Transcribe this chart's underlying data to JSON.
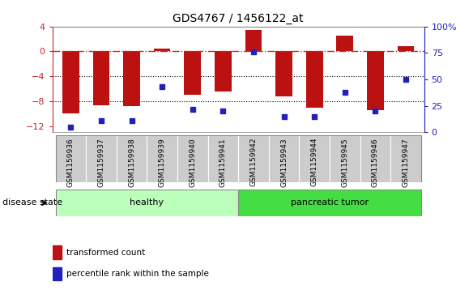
{
  "title": "GDS4767 / 1456122_at",
  "samples": [
    "GSM1159936",
    "GSM1159937",
    "GSM1159938",
    "GSM1159939",
    "GSM1159940",
    "GSM1159941",
    "GSM1159942",
    "GSM1159943",
    "GSM1159944",
    "GSM1159945",
    "GSM1159946",
    "GSM1159947"
  ],
  "transformed_count": [
    -10.0,
    -8.6,
    -8.8,
    0.5,
    -7.0,
    -6.5,
    3.5,
    -7.2,
    -9.0,
    2.5,
    -9.5,
    0.8
  ],
  "percentile_rank": [
    5,
    11,
    11,
    43,
    22,
    20,
    76,
    15,
    15,
    38,
    20,
    50
  ],
  "ylim_left": [
    -13,
    4
  ],
  "ylim_right": [
    0,
    100
  ],
  "yticks_left": [
    4,
    0,
    -4,
    -8,
    -12
  ],
  "yticks_right": [
    100,
    75,
    50,
    25,
    0
  ],
  "bar_color": "#bb1111",
  "dot_color": "#2222bb",
  "hline_color": "#cc2222",
  "grid_color": "#000000",
  "group_labels": [
    "healthy",
    "pancreatic tumor"
  ],
  "group_color_light": "#bbffbb",
  "group_color_dark": "#44dd44",
  "disease_state_label": "disease state",
  "legend_labels": [
    "transformed count",
    "percentile rank within the sample"
  ],
  "background_color": "#ffffff",
  "tick_bg_color": "#cccccc",
  "border_color": "#888888"
}
